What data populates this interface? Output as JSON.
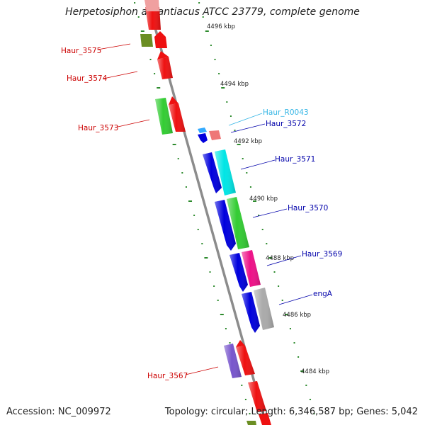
{
  "title": "Herpetosiphon aurantiacus ATCC 23779, complete genome",
  "footer": {
    "accession": "Accession: NC_009972",
    "topology": "Topology: circular;",
    "length": "Length: 6,346,587 bp;",
    "genes": "Genes: 5,042"
  },
  "scale_labels": [
    "4496 kbp",
    "4494 kbp",
    "4492 kbp",
    "4490 kbp",
    "4488 kbp",
    "4486 kbp",
    "4484 kbp"
  ],
  "colors": {
    "backbone": "#8c8c8c",
    "forward_label": "#cc0000",
    "reverse_label": "#0000aa",
    "rrna_label": "#33b5e5",
    "tick_mark": "#2e8b2e"
  },
  "genes": [
    {
      "label": "Haur_3575",
      "color": "#6b8e23",
      "strand": "forward",
      "label_color": "#cc0000"
    },
    {
      "label": "Haur_3574",
      "color": "#ee1111",
      "strand": "forward",
      "label_color": "#cc0000"
    },
    {
      "label": "Haur_3573",
      "color": "#33cc33",
      "strand": "forward",
      "label_color": "#cc0000"
    },
    {
      "label": "Haur_R0043",
      "color": "#33aaff",
      "strand": "reverse",
      "label_color": "#33b5e5"
    },
    {
      "label": "Haur_3572",
      "color": "#ee7777",
      "strand": "reverse",
      "label_color": "#0000aa"
    },
    {
      "label": "Haur_3571",
      "color": "#00e5e5",
      "strand": "reverse",
      "label_color": "#0000aa"
    },
    {
      "label": "Haur_3570",
      "color": "#33cc33",
      "strand": "reverse",
      "label_color": "#0000aa"
    },
    {
      "label": "Haur_3569",
      "color": "#ee1188",
      "strand": "reverse",
      "label_color": "#0000aa"
    },
    {
      "label": "engA",
      "color": "#aaaaaa",
      "strand": "reverse",
      "label_color": "#0000aa"
    },
    {
      "label": "Haur_3567",
      "color": "#7755cc",
      "strand": "forward",
      "label_color": "#cc0000"
    }
  ]
}
